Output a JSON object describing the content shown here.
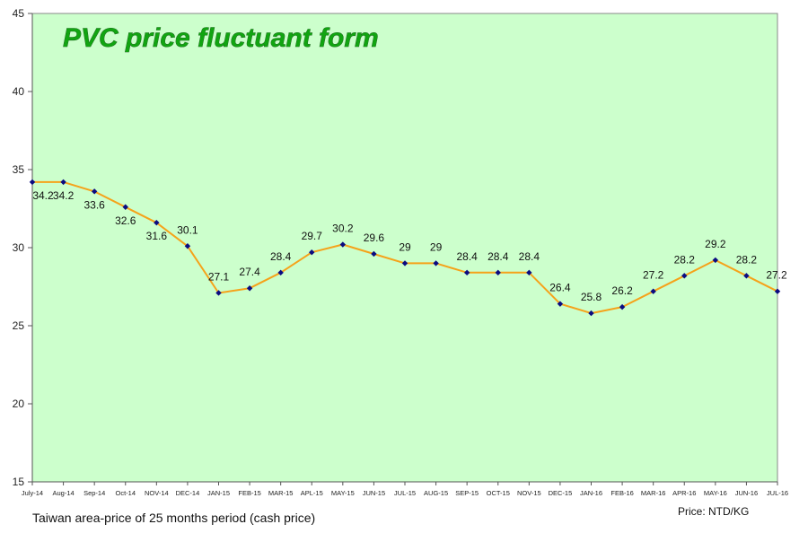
{
  "chart_data": {
    "type": "line",
    "title": "PVC price fluctuant form",
    "categories": [
      "July-14",
      "Aug-14",
      "Sep-14",
      "Oct-14",
      "NOV-14",
      "DEC-14",
      "JAN-15",
      "FEB-15",
      "MAR-15",
      "APL-15",
      "MAY-15",
      "JUN-15",
      "JUL-15",
      "AUG-15",
      "SEP-15",
      "OCT-15",
      "NOV-15",
      "DEC-15",
      "JAN-16",
      "FEB-16",
      "MAR-16",
      "APR-16",
      "MAY-16",
      "JUN-16",
      "JUL-16"
    ],
    "values": [
      34.2,
      34.2,
      33.6,
      32.6,
      31.6,
      30.1,
      27.1,
      27.4,
      28.4,
      29.7,
      30.2,
      29.6,
      29,
      29,
      28.4,
      28.4,
      28.4,
      26.4,
      25.8,
      26.2,
      27.2,
      28.2,
      29.2,
      28.2,
      27.2
    ],
    "data_labels": [
      "34.2",
      "34.2",
      "33.6",
      "32.6",
      "31.6",
      "30.1",
      "27.1",
      "27.4",
      "28.4",
      "29.7",
      "30.2",
      "29.6",
      "29",
      "29",
      "28.4",
      "28.4",
      "28.4",
      "26.4",
      "25.8",
      "26.2",
      "27.2",
      "28.2",
      "29.2",
      "28.2",
      "27.2"
    ],
    "ylim": [
      15,
      45
    ],
    "yticks": [
      "15",
      "20",
      "25",
      "30",
      "35",
      "40",
      "45"
    ],
    "grid": false,
    "colors": {
      "plot_background": "#ccffcc",
      "line": "#f5a21a",
      "marker": "#0b0b80",
      "title": "#11a411"
    }
  },
  "footer": {
    "caption": "Taiwan area-price of 25 months period (cash price)",
    "unit": "Price: NTD/KG"
  }
}
